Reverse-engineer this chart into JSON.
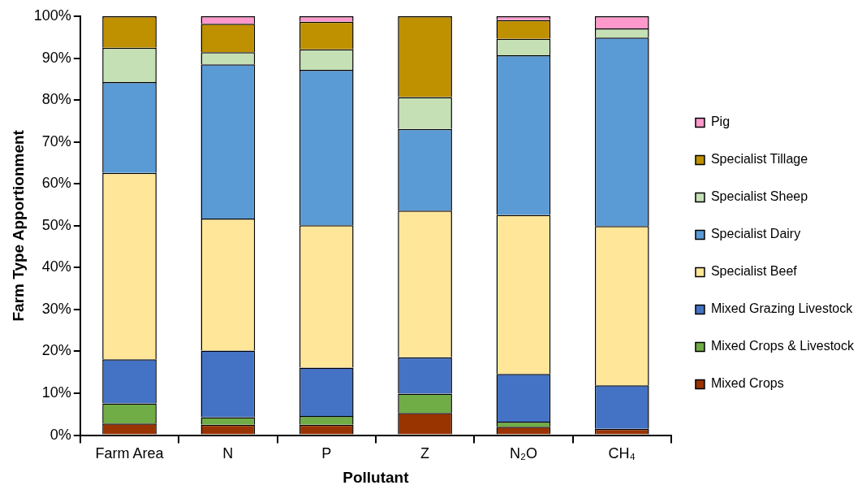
{
  "chart_data": {
    "type": "bar",
    "stacked": true,
    "xlabel": "Pollutant",
    "ylabel": "Farm Type Apportionment",
    "categories": [
      "Farm Area",
      "N",
      "P",
      "Z",
      "N₂O",
      "CH₄"
    ],
    "series": [
      {
        "name": "Mixed Crops",
        "color": "#993300",
        "values": [
          2.8,
          2.5,
          2.5,
          5.3,
          2.0,
          1.5
        ]
      },
      {
        "name": "Mixed Crops & Livestock",
        "color": "#70ad47",
        "values": [
          4.8,
          1.8,
          2.1,
          4.6,
          1.2,
          0
        ]
      },
      {
        "name": "Mixed Grazing Livestock",
        "color": "#4472c4",
        "values": [
          10.5,
          15.9,
          11.5,
          8.7,
          11.4,
          10.4
        ]
      },
      {
        "name": "Specialist Beef",
        "color": "#ffe699",
        "values": [
          44.5,
          31.5,
          34.0,
          35.0,
          38.0,
          38.0
        ]
      },
      {
        "name": "Specialist Dairy",
        "color": "#5b9bd5",
        "values": [
          21.7,
          36.8,
          37.1,
          19.5,
          38.1,
          45.0
        ]
      },
      {
        "name": "Specialist Sheep",
        "color": "#c5e0b4",
        "values": [
          8.2,
          2.9,
          4.9,
          7.6,
          3.9,
          2.2
        ]
      },
      {
        "name": "Specialist Tillage",
        "color": "#bf9000",
        "values": [
          7.5,
          6.8,
          6.6,
          19.3,
          4.5,
          0
        ]
      },
      {
        "name": "Pig",
        "color": "#ff99cc",
        "values": [
          0,
          1.8,
          1.3,
          0,
          0.9,
          2.9
        ]
      }
    ],
    "ylim": [
      0,
      100
    ],
    "yticks": [
      {
        "value": 0,
        "label": "0%"
      },
      {
        "value": 10,
        "label": "10%"
      },
      {
        "value": 20,
        "label": "20%"
      },
      {
        "value": 30,
        "label": "30%"
      },
      {
        "value": 40,
        "label": "40%"
      },
      {
        "value": 50,
        "label": "50%"
      },
      {
        "value": 60,
        "label": "60%"
      },
      {
        "value": 70,
        "label": "70%"
      },
      {
        "value": 80,
        "label": "80%"
      },
      {
        "value": 90,
        "label": "90%"
      },
      {
        "value": 100,
        "label": "100%"
      }
    ],
    "grid": false,
    "legend": "right"
  }
}
